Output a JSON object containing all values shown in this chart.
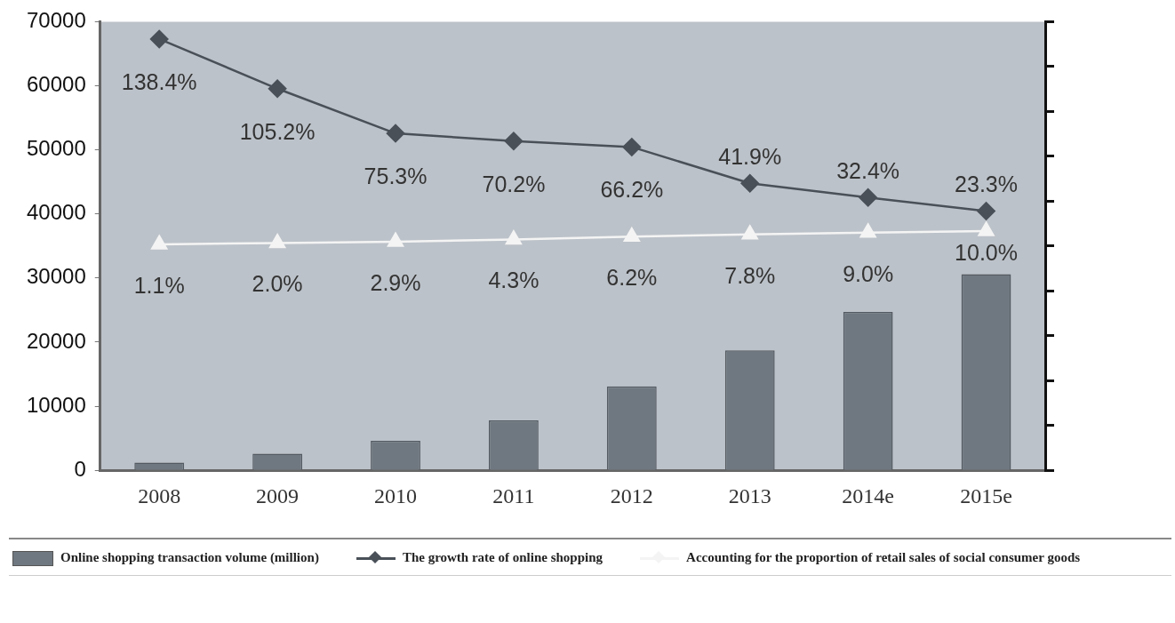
{
  "chart_data": {
    "type": "bar",
    "categories": [
      "2008",
      "2009",
      "2010",
      "2011",
      "2012",
      "2013",
      "2014e",
      "2015e"
    ],
    "series": [
      {
        "name": "Online shopping transaction volume (million)",
        "color": "#6f7880",
        "values": [
          1200,
          2600,
          4600,
          7800,
          13100,
          18700,
          24700,
          30600
        ]
      },
      {
        "name": "The growth rate of online shopping",
        "type": "line",
        "axis": "y2",
        "marker": "diamond",
        "color": "#4a5058",
        "values": [
          138.4,
          105.2,
          75.3,
          70.2,
          66.2,
          41.9,
          32.4,
          23.3
        ],
        "value_labels": [
          "138.4%",
          "105.2%",
          "75.3%",
          "70.2%",
          "66.2%",
          "41.9%",
          "32.4%",
          "23.3%"
        ]
      },
      {
        "name": "Accounting for the proportion of retail sales of social consumer goods",
        "type": "line",
        "axis": "y2",
        "marker": "triangle",
        "color": "#f4f4f4",
        "values": [
          1.1,
          2.0,
          2.9,
          4.3,
          6.2,
          7.8,
          9.0,
          10.0
        ],
        "value_labels": [
          "1.1%",
          "2.0%",
          "2.9%",
          "4.3%",
          "6.2%",
          "7.8%",
          "9.0%",
          "10.0%"
        ]
      }
    ],
    "ylim": [
      0,
      70000
    ],
    "yticks": [
      0,
      10000,
      20000,
      30000,
      40000,
      50000,
      60000,
      70000
    ],
    "y2lim": [
      -150,
      150
    ],
    "y2ticks": [
      {
        "value": -150,
        "label": null
      },
      {
        "value": -120,
        "label": null
      },
      {
        "value": -90,
        "label": null
      },
      {
        "value": -60,
        "label": null
      },
      {
        "value": -30,
        "label": null
      },
      {
        "value": 0,
        "label": null
      },
      {
        "value": 30,
        "label": null
      },
      {
        "value": 60,
        "label": null
      },
      {
        "value": 90,
        "label": null
      },
      {
        "value": 120,
        "label": null
      },
      {
        "value": 150,
        "label": null
      }
    ],
    "tick_labels": "xy",
    "grid": false,
    "legend": "bottom"
  }
}
